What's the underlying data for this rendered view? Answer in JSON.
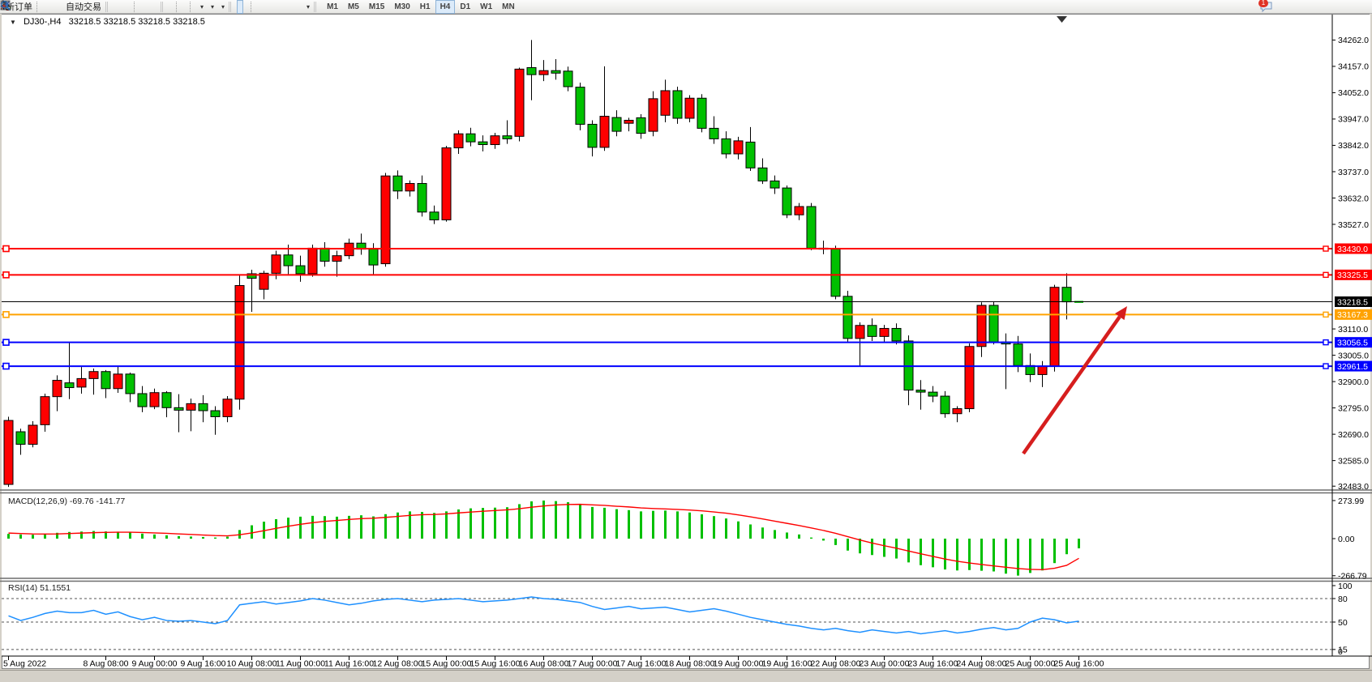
{
  "toolbar": {
    "new_order_label": "新订单",
    "autotrading_label": "自动交易",
    "timeframes": [
      "M1",
      "M5",
      "M15",
      "M30",
      "H1",
      "H4",
      "D1",
      "W1",
      "MN"
    ],
    "active_timeframe": "H4",
    "chat_badge": "1"
  },
  "chart": {
    "title_symbol": "DJ30-,H4",
    "title_quotes": "33218.5 33218.5 33218.5 33218.5"
  },
  "indicators": {
    "macd_label": "MACD(12,26,9) -69.76 -141.77",
    "rsi_label": "RSI(14) 51.1551"
  },
  "chart_data": {
    "type": "candlestick",
    "symbol": "DJ30-",
    "timeframe": "H4",
    "current_bar": {
      "open": 33218.5,
      "high": 33218.5,
      "low": 33218.5,
      "close": 33218.5
    },
    "colors": {
      "bull": "#fe0000",
      "bear": "#00c000",
      "wick": "#000000",
      "macd_hist": "#00c000",
      "macd_signal": "#fe0000",
      "rsi_line": "#1e90ff",
      "arrow": "#d61e1e"
    },
    "y_axis": {
      "min": 32474,
      "max": 34315,
      "ticks": [
        34262.0,
        34157.0,
        34052.0,
        33947.0,
        33842.0,
        33737.0,
        33632.0,
        33527.0,
        33110.0,
        33005.0,
        32900.0,
        32795.0,
        32690.0,
        32585.0,
        32483.0
      ]
    },
    "price_lines": [
      {
        "label": "33430.0",
        "price": 33430.0,
        "color": "#ff0000",
        "width": 2,
        "handles": true
      },
      {
        "label": "33325.5",
        "price": 33325.5,
        "color": "#ff0000",
        "width": 2,
        "handles": true
      },
      {
        "label": "33218.5",
        "price": 33218.5,
        "color": "#000000",
        "width": 1,
        "handles": false
      },
      {
        "label": "33167.3",
        "price": 33167.3,
        "color": "#ffa200",
        "width": 2,
        "handles": true
      },
      {
        "label": "33056.5",
        "price": 33056.5,
        "color": "#0000ff",
        "width": 2,
        "handles": true
      },
      {
        "label": "32961.5",
        "price": 32961.5,
        "color": "#0000ff",
        "width": 2,
        "handles": true
      }
    ],
    "x_labels": [
      {
        "text": "5 Aug 2022",
        "bar": 0
      },
      {
        "text": "8 Aug 08:00",
        "bar": 8
      },
      {
        "text": "9 Aug 00:00",
        "bar": 12
      },
      {
        "text": "9 Aug 16:00",
        "bar": 16
      },
      {
        "text": "10 Aug 08:00",
        "bar": 20
      },
      {
        "text": "11 Aug 00:00",
        "bar": 24
      },
      {
        "text": "11 Aug 16:00",
        "bar": 28
      },
      {
        "text": "12 Aug 08:00",
        "bar": 32
      },
      {
        "text": "15 Aug 00:00",
        "bar": 36
      },
      {
        "text": "15 Aug 16:00",
        "bar": 40
      },
      {
        "text": "16 Aug 08:00",
        "bar": 44
      },
      {
        "text": "17 Aug 00:00",
        "bar": 48
      },
      {
        "text": "17 Aug 16:00",
        "bar": 52
      },
      {
        "text": "18 Aug 08:00",
        "bar": 56
      },
      {
        "text": "19 Aug 00:00",
        "bar": 60
      },
      {
        "text": "19 Aug 16:00",
        "bar": 64
      },
      {
        "text": "22 Aug 08:00",
        "bar": 68
      },
      {
        "text": "23 Aug 00:00",
        "bar": 72
      },
      {
        "text": "23 Aug 16:00",
        "bar": 76
      },
      {
        "text": "24 Aug 08:00",
        "bar": 80
      },
      {
        "text": "25 Aug 00:00",
        "bar": 84
      },
      {
        "text": "25 Aug 16:00",
        "bar": 88
      }
    ],
    "ohlc": [
      [
        32490,
        32760,
        32480,
        32745
      ],
      [
        32700,
        32712,
        32608,
        32650
      ],
      [
        32650,
        32742,
        32638,
        32726
      ],
      [
        32728,
        32852,
        32700,
        32840
      ],
      [
        32840,
        32925,
        32782,
        32905
      ],
      [
        32895,
        33055,
        32830,
        32876
      ],
      [
        32878,
        32958,
        32852,
        32912
      ],
      [
        32912,
        32952,
        32848,
        32940
      ],
      [
        32940,
        32946,
        32834,
        32872
      ],
      [
        32872,
        32962,
        32855,
        32930
      ],
      [
        32930,
        32936,
        32818,
        32852
      ],
      [
        32852,
        32882,
        32778,
        32800
      ],
      [
        32800,
        32872,
        32790,
        32856
      ],
      [
        32856,
        32862,
        32758,
        32796
      ],
      [
        32796,
        32850,
        32698,
        32786
      ],
      [
        32786,
        32832,
        32702,
        32812
      ],
      [
        32812,
        32846,
        32738,
        32784
      ],
      [
        32784,
        32802,
        32688,
        32760
      ],
      [
        32760,
        32842,
        32738,
        32830
      ],
      [
        32830,
        33325,
        32788,
        33283
      ],
      [
        33330,
        33346,
        33178,
        33312
      ],
      [
        33268,
        33342,
        33228,
        33332
      ],
      [
        33332,
        33422,
        33308,
        33405
      ],
      [
        33405,
        33446,
        33328,
        33362
      ],
      [
        33362,
        33402,
        33298,
        33330
      ],
      [
        33330,
        33446,
        33318,
        33432
      ],
      [
        33432,
        33456,
        33358,
        33380
      ],
      [
        33380,
        33422,
        33318,
        33402
      ],
      [
        33402,
        33470,
        33388,
        33452
      ],
      [
        33452,
        33490,
        33406,
        33428
      ],
      [
        33428,
        33452,
        33328,
        33365
      ],
      [
        33370,
        33732,
        33358,
        33720
      ],
      [
        33720,
        33742,
        33628,
        33660
      ],
      [
        33660,
        33702,
        33638,
        33690
      ],
      [
        33690,
        33722,
        33558,
        33576
      ],
      [
        33576,
        33602,
        33528,
        33545
      ],
      [
        33545,
        33840,
        33538,
        33832
      ],
      [
        33832,
        33902,
        33808,
        33888
      ],
      [
        33888,
        33912,
        33838,
        33856
      ],
      [
        33856,
        33882,
        33818,
        33845
      ],
      [
        33845,
        33892,
        33828,
        33880
      ],
      [
        33880,
        33942,
        33848,
        33868
      ],
      [
        33878,
        34152,
        33858,
        34146
      ],
      [
        34152,
        34262,
        34022,
        34124
      ],
      [
        34124,
        34182,
        34098,
        34140
      ],
      [
        34140,
        34186,
        34104,
        34130
      ],
      [
        34138,
        34156,
        34058,
        34076
      ],
      [
        34074,
        34092,
        33902,
        33926
      ],
      [
        33926,
        33942,
        33798,
        33834
      ],
      [
        33834,
        34157,
        33820,
        33958
      ],
      [
        33953,
        33982,
        33878,
        33898
      ],
      [
        33930,
        33952,
        33898,
        33942
      ],
      [
        33952,
        33966,
        33868,
        33890
      ],
      [
        33898,
        34058,
        33878,
        34028
      ],
      [
        33962,
        34104,
        33934,
        34060
      ],
      [
        34060,
        34076,
        33928,
        33950
      ],
      [
        33950,
        34042,
        33934,
        34030
      ],
      [
        34030,
        34046,
        33894,
        33910
      ],
      [
        33910,
        33958,
        33848,
        33868
      ],
      [
        33868,
        33898,
        33790,
        33808
      ],
      [
        33808,
        33876,
        33786,
        33860
      ],
      [
        33855,
        33915,
        33740,
        33752
      ],
      [
        33752,
        33790,
        33688,
        33700
      ],
      [
        33700,
        33722,
        33648,
        33672
      ],
      [
        33672,
        33682,
        33552,
        33565
      ],
      [
        33565,
        33612,
        33544,
        33598
      ],
      [
        33598,
        33612,
        33424,
        33432
      ],
      [
        33432,
        33462,
        33408,
        33428
      ],
      [
        33428,
        33442,
        33228,
        33240
      ],
      [
        33240,
        33262,
        33058,
        33072
      ],
      [
        33072,
        33136,
        32963,
        33124
      ],
      [
        33124,
        33152,
        33062,
        33080
      ],
      [
        33080,
        33126,
        33054,
        33112
      ],
      [
        33112,
        33132,
        33048,
        33062
      ],
      [
        33062,
        33084,
        32806,
        32866
      ],
      [
        32866,
        32906,
        32788,
        32858
      ],
      [
        32858,
        32882,
        32818,
        32842
      ],
      [
        32842,
        32862,
        32756,
        32772
      ],
      [
        32772,
        32802,
        32738,
        32792
      ],
      [
        32792,
        33052,
        32778,
        33040
      ],
      [
        33040,
        33216,
        32998,
        33204
      ],
      [
        33204,
        33218,
        33048,
        33058
      ],
      [
        33058,
        33092,
        32870,
        33050
      ],
      [
        33050,
        33082,
        32938,
        32964
      ],
      [
        32964,
        33012,
        32898,
        32928
      ],
      [
        32928,
        32982,
        32878,
        32962
      ],
      [
        32962,
        33286,
        32940,
        33276
      ],
      [
        33276,
        33332,
        33148,
        33218
      ],
      [
        33218.5,
        33218.5,
        33218.5,
        33218.5
      ]
    ],
    "macd": {
      "name": "MACD",
      "params": "12,26,9",
      "last": -69.76,
      "signal_last": -141.77,
      "ticks": [
        "273.99",
        "0.00",
        "-266.79"
      ],
      "tick_values": [
        273.99,
        0,
        -266.79
      ],
      "values": [
        34,
        30,
        28,
        33,
        42,
        48,
        51,
        55,
        52,
        50,
        44,
        36,
        30,
        24,
        18,
        15,
        12,
        8,
        14,
        62,
        96,
        122,
        140,
        151,
        158,
        164,
        162,
        158,
        164,
        168,
        160,
        176,
        188,
        196,
        192,
        185,
        196,
        210,
        218,
        221,
        223,
        226,
        248,
        268,
        274,
        270,
        262,
        248,
        228,
        222,
        212,
        205,
        196,
        200,
        202,
        196,
        188,
        175,
        162,
        145,
        124,
        102,
        80,
        62,
        44,
        30,
        8,
        -14,
        -46,
        -86,
        -106,
        -118,
        -131,
        -143,
        -171,
        -191,
        -206,
        -222,
        -229,
        -226,
        -231,
        -236,
        -252,
        -266,
        -247,
        -229,
        -176,
        -112,
        -69.76
      ],
      "signal": [
        40,
        37,
        34,
        33,
        34,
        37,
        40,
        43,
        45,
        46,
        46,
        44,
        41,
        38,
        34,
        30,
        26,
        22,
        20,
        28,
        41,
        57,
        74,
        89,
        103,
        115,
        124,
        131,
        138,
        144,
        147,
        153,
        160,
        167,
        172,
        174,
        178,
        185,
        191,
        197,
        202,
        207,
        215,
        226,
        235,
        242,
        246,
        247,
        243,
        239,
        233,
        228,
        221,
        217,
        214,
        210,
        206,
        200,
        192,
        183,
        171,
        157,
        142,
        126,
        110,
        94,
        77,
        59,
        38,
        14,
        -10,
        -32,
        -51,
        -69,
        -89,
        -109,
        -128,
        -147,
        -163,
        -175,
        -186,
        -196,
        -206,
        -215,
        -221,
        -223,
        -213,
        -192,
        -141.77
      ]
    },
    "rsi": {
      "name": "RSI",
      "params": "14",
      "last": 51.1551,
      "levels": [
        80,
        50,
        15
      ],
      "ticks": [
        100,
        80,
        50,
        15,
        0
      ],
      "values": [
        58,
        52,
        56,
        61,
        64,
        62,
        62,
        65,
        60,
        63,
        57,
        53,
        56,
        52,
        51,
        52,
        50,
        48,
        52,
        72,
        74,
        76,
        73,
        75,
        77,
        80,
        78,
        75,
        72,
        74,
        77,
        79,
        80,
        78,
        76,
        78,
        79,
        80,
        78,
        76,
        77,
        78,
        80,
        82,
        80,
        79,
        77,
        75,
        70,
        66,
        68,
        70,
        67,
        68,
        69,
        66,
        63,
        65,
        67,
        64,
        60,
        56,
        53,
        50,
        47,
        45,
        42,
        40,
        42,
        39,
        37,
        40,
        38,
        36,
        38,
        35,
        37,
        39,
        36,
        38,
        41,
        43,
        40,
        42,
        50,
        55,
        53,
        49,
        51.16
      ]
    },
    "annotation_arrow": {
      "from": [
        1262,
        560
      ],
      "to": [
        1390,
        378
      ]
    }
  }
}
